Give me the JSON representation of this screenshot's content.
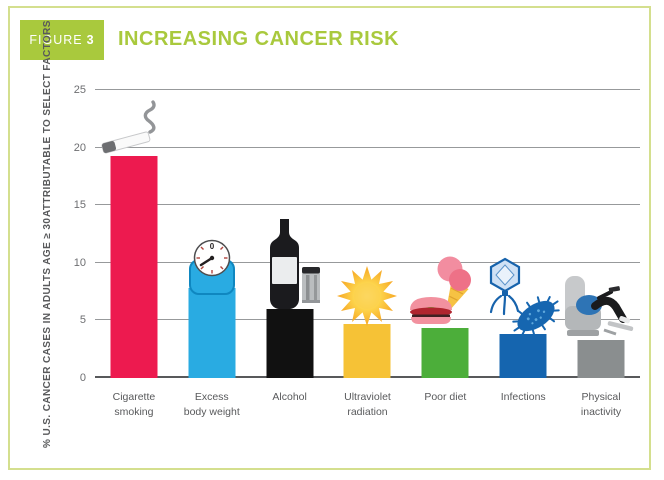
{
  "header": {
    "figure_word": "FIGURE",
    "figure_number": "3",
    "title": "INCREASING CANCER RISK",
    "accent_color": "#A9C93D"
  },
  "chart_data": {
    "type": "bar",
    "title": "INCREASING CANCER RISK",
    "ylabel_lines": [
      "% U.S. CANCER CASES IN ADULTS AGE ≥ 30",
      "ATTRIBUTABLE TO SELECT FACTORS"
    ],
    "xlabel": "",
    "ylim": [
      0,
      25
    ],
    "yticks": [
      0,
      5,
      10,
      15,
      20,
      25
    ],
    "grid": true,
    "legend_position": "none",
    "categories": [
      "Cigarette smoking",
      "Excess body weight",
      "Alcohol",
      "Ultraviolet radiation",
      "Poor diet",
      "Infections",
      "Physical inactivity"
    ],
    "category_label_lines": [
      [
        "Cigarette",
        "smoking"
      ],
      [
        "Excess",
        "body weight"
      ],
      [
        "Alcohol"
      ],
      [
        "Ultraviolet",
        "radiation"
      ],
      [
        "Poor diet"
      ],
      [
        "Infections"
      ],
      [
        "Physical",
        "inactivity"
      ]
    ],
    "values": [
      19.3,
      7.8,
      6.0,
      4.7,
      4.3,
      3.8,
      3.3
    ],
    "bar_colors": [
      "#ED1A4F",
      "#29ABE2",
      "#111111",
      "#F6C236",
      "#4CAE3A",
      "#1565AF",
      "#8A8E8F"
    ],
    "icons": [
      "cigarette-icon",
      "scale-icon",
      "alcohol-icon",
      "sun-icon",
      "junk-food-icon",
      "infection-icon",
      "recliner-icon"
    ]
  }
}
